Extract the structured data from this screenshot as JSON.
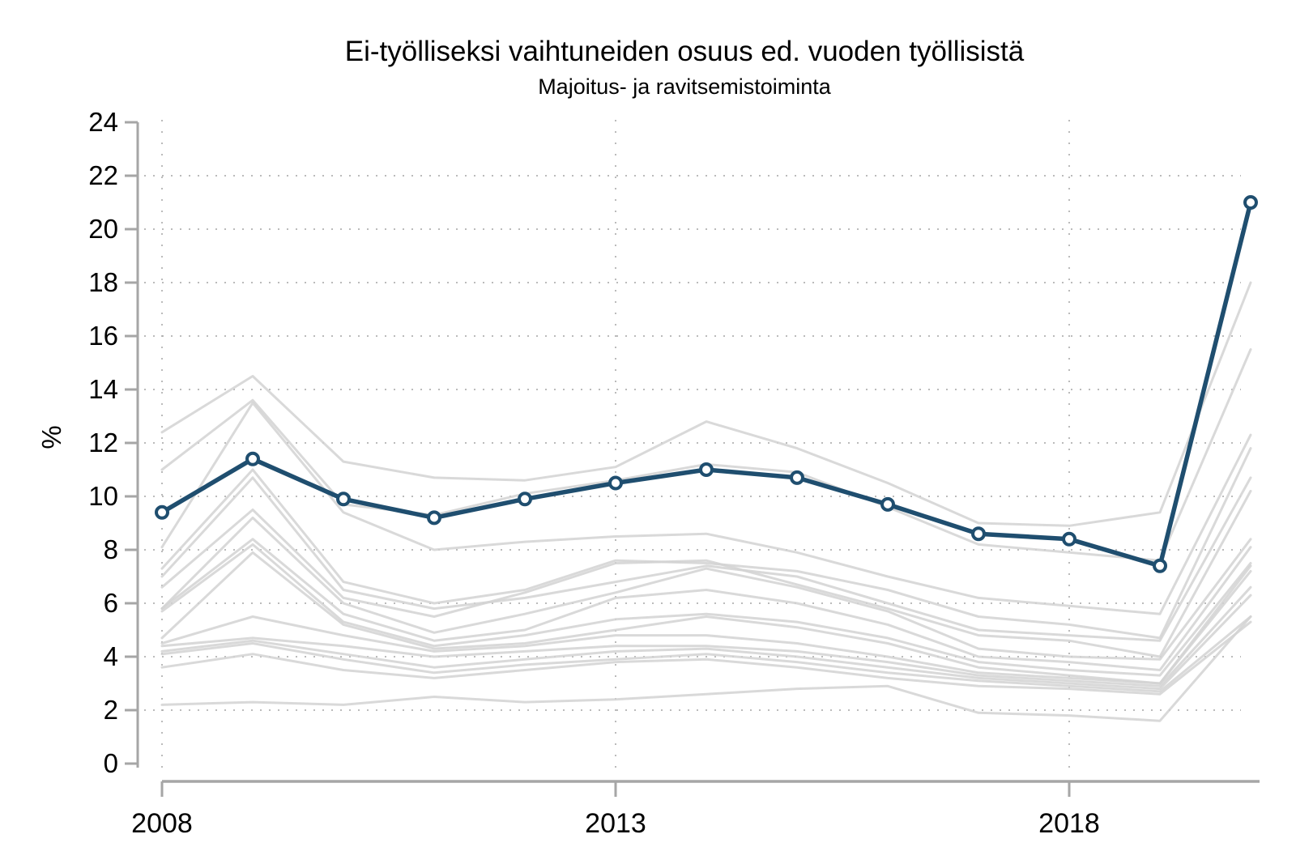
{
  "title": "Ei-työlliseksi vaihtuneiden osuus ed. vuoden työllisistä",
  "subtitle": "Majoitus- ja ravitsemistoiminta",
  "chart_data": {
    "type": "line",
    "title": "Ei-työlliseksi vaihtuneiden osuus ed. vuoden työllisistä",
    "subtitle": "Majoitus- ja ravitsemistoiminta",
    "xlabel": "",
    "ylabel": "%",
    "ylim": [
      0,
      24
    ],
    "yticks": [
      0,
      2,
      4,
      6,
      8,
      10,
      12,
      14,
      16,
      18,
      20,
      22,
      24
    ],
    "ygrid_values": [
      2,
      4,
      6,
      8,
      10,
      12,
      14,
      16,
      18,
      20,
      22
    ],
    "x": [
      2008,
      2009,
      2010,
      2011,
      2012,
      2013,
      2014,
      2015,
      2016,
      2017,
      2018,
      2019,
      2020
    ],
    "xticks": [
      2008,
      2013,
      2018
    ],
    "grid": "dotted",
    "legend_position": "none",
    "colors": {
      "highlight": "#1f4e6f",
      "background": "#d2d2d2",
      "axis": "#a6a6a6",
      "grid": "#aaaaaa",
      "marker_fill": "#ffffff"
    },
    "highlight_series": {
      "name": "Majoitus- ja ravitsemistoiminta",
      "values": [
        9.4,
        11.4,
        9.9,
        9.2,
        9.9,
        10.5,
        11.0,
        10.7,
        9.7,
        8.6,
        8.4,
        7.4,
        21.0
      ]
    },
    "background_series": [
      {
        "name": "background-1",
        "values": [
          12.4,
          14.5,
          11.3,
          10.7,
          10.6,
          11.1,
          12.8,
          11.8,
          10.5,
          9.0,
          8.9,
          9.4,
          18.0
        ]
      },
      {
        "name": "background-2",
        "values": [
          11.0,
          13.6,
          9.7,
          9.3,
          10.1,
          10.6,
          11.2,
          10.9,
          9.6,
          8.2,
          7.9,
          7.6,
          15.5
        ]
      },
      {
        "name": "background-3",
        "values": [
          8.1,
          13.5,
          9.4,
          8.0,
          8.3,
          8.5,
          8.6,
          7.9,
          7.0,
          6.2,
          5.9,
          5.6,
          12.3
        ]
      },
      {
        "name": "background-4",
        "values": [
          7.3,
          11.0,
          6.8,
          6.0,
          6.5,
          7.6,
          7.5,
          7.2,
          6.5,
          5.5,
          5.2,
          4.7,
          11.8
        ]
      },
      {
        "name": "background-5",
        "values": [
          7.0,
          10.7,
          6.5,
          5.8,
          6.2,
          6.8,
          7.4,
          7.0,
          6.0,
          5.0,
          4.8,
          4.6,
          10.7
        ]
      },
      {
        "name": "background-6",
        "values": [
          6.6,
          9.5,
          6.2,
          5.5,
          6.4,
          7.5,
          7.6,
          6.7,
          5.8,
          4.8,
          4.6,
          4.0,
          10.2
        ]
      },
      {
        "name": "background-7",
        "values": [
          5.8,
          9.2,
          6.0,
          4.9,
          5.6,
          6.4,
          7.3,
          6.6,
          5.7,
          4.3,
          4.0,
          3.9,
          8.4
        ]
      },
      {
        "name": "background-8",
        "values": [
          5.8,
          8.4,
          5.6,
          4.6,
          5.0,
          6.2,
          6.5,
          6.0,
          5.2,
          4.0,
          3.8,
          3.5,
          8.1
        ]
      },
      {
        "name": "background-9",
        "values": [
          5.7,
          8.2,
          5.3,
          4.4,
          4.8,
          5.4,
          5.6,
          5.3,
          4.7,
          3.8,
          3.5,
          3.3,
          7.5
        ]
      },
      {
        "name": "background-10",
        "values": [
          4.7,
          7.9,
          5.2,
          4.3,
          4.5,
          5.0,
          5.5,
          5.1,
          4.5,
          3.6,
          3.3,
          3.0,
          7.4
        ]
      },
      {
        "name": "background-11",
        "values": [
          4.5,
          5.5,
          4.8,
          4.2,
          4.4,
          4.8,
          4.8,
          4.5,
          4.0,
          3.4,
          3.2,
          3.0,
          7.2
        ]
      },
      {
        "name": "background-12",
        "values": [
          4.4,
          4.7,
          4.4,
          4.0,
          4.2,
          4.4,
          4.4,
          4.2,
          3.8,
          3.3,
          3.1,
          2.9,
          6.6
        ]
      },
      {
        "name": "background-13",
        "values": [
          4.2,
          4.6,
          4.1,
          3.6,
          3.9,
          4.2,
          4.3,
          4.0,
          3.6,
          3.2,
          3.0,
          2.8,
          6.3
        ]
      },
      {
        "name": "background-14",
        "values": [
          4.1,
          4.5,
          3.9,
          3.4,
          3.7,
          3.9,
          4.1,
          3.8,
          3.4,
          3.1,
          2.9,
          2.7,
          5.5
        ]
      },
      {
        "name": "background-15",
        "values": [
          3.6,
          4.1,
          3.5,
          3.2,
          3.5,
          3.8,
          3.9,
          3.6,
          3.2,
          2.9,
          2.8,
          2.6,
          5.3
        ]
      },
      {
        "name": "background-16",
        "values": [
          2.2,
          2.3,
          2.2,
          2.5,
          2.3,
          2.4,
          2.6,
          2.8,
          2.9,
          1.9,
          1.8,
          1.6,
          5.5
        ]
      }
    ]
  }
}
